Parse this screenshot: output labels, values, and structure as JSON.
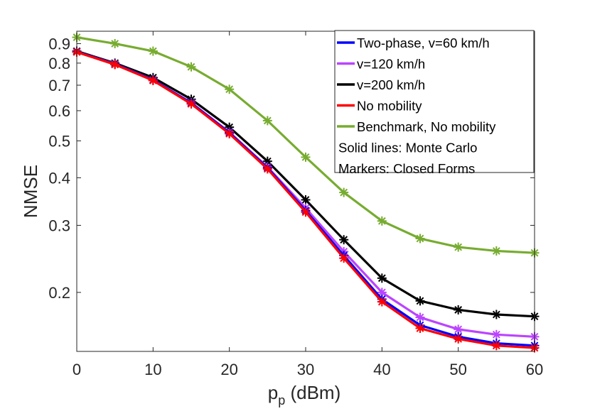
{
  "chart_data": {
    "type": "line",
    "title": "",
    "xlabel": "p",
    "xlabel_subscript": "p",
    "xlabel_unit": " (dBm)",
    "ylabel": "NMSE",
    "yscale": "log",
    "xlim": [
      0,
      60
    ],
    "ylim": [
      0.14,
      0.97
    ],
    "xticks": [
      0,
      10,
      20,
      30,
      40,
      50,
      60
    ],
    "xtick_labels": [
      "0",
      "10",
      "20",
      "30",
      "40",
      "50",
      "60"
    ],
    "yticks": [
      0.2,
      0.3,
      0.4,
      0.5,
      0.6,
      0.7,
      0.8,
      0.9
    ],
    "ytick_labels": [
      "0.2",
      "0.3",
      "0.4",
      "0.5",
      "0.6",
      "0.7",
      "0.8",
      "0.9"
    ],
    "grid": false,
    "legend_position": "top-right",
    "x": [
      0,
      5,
      10,
      15,
      20,
      25,
      30,
      35,
      40,
      45,
      50,
      55,
      60
    ],
    "series": [
      {
        "name": "Two-phase, v=60 km/h",
        "color": "#0000ff",
        "values": [
          0.857,
          0.795,
          0.722,
          0.628,
          0.525,
          0.425,
          0.328,
          0.25,
          0.192,
          0.164,
          0.153,
          0.147,
          0.145
        ]
      },
      {
        "name": "v=120 km/h",
        "color": "#bb44ff",
        "values": [
          0.857,
          0.796,
          0.723,
          0.63,
          0.527,
          0.427,
          0.333,
          0.256,
          0.2,
          0.172,
          0.16,
          0.155,
          0.153
        ]
      },
      {
        "name": "v=200 km/h",
        "color": "#000000",
        "values": [
          0.86,
          0.8,
          0.733,
          0.643,
          0.543,
          0.442,
          0.35,
          0.275,
          0.218,
          0.19,
          0.18,
          0.175,
          0.173
        ]
      },
      {
        "name": "No mobility",
        "color": "#ff0000",
        "values": [
          0.855,
          0.793,
          0.72,
          0.625,
          0.522,
          0.422,
          0.325,
          0.246,
          0.189,
          0.161,
          0.151,
          0.145,
          0.143
        ]
      },
      {
        "name": "Benchmark, No mobility",
        "color": "#77ac30",
        "values": [
          0.935,
          0.9,
          0.86,
          0.782,
          0.683,
          0.565,
          0.453,
          0.366,
          0.308,
          0.277,
          0.263,
          0.257,
          0.254
        ]
      }
    ],
    "legend_notes": [
      "Solid lines: Monte Carlo",
      "Markers: Closed Forms"
    ]
  }
}
